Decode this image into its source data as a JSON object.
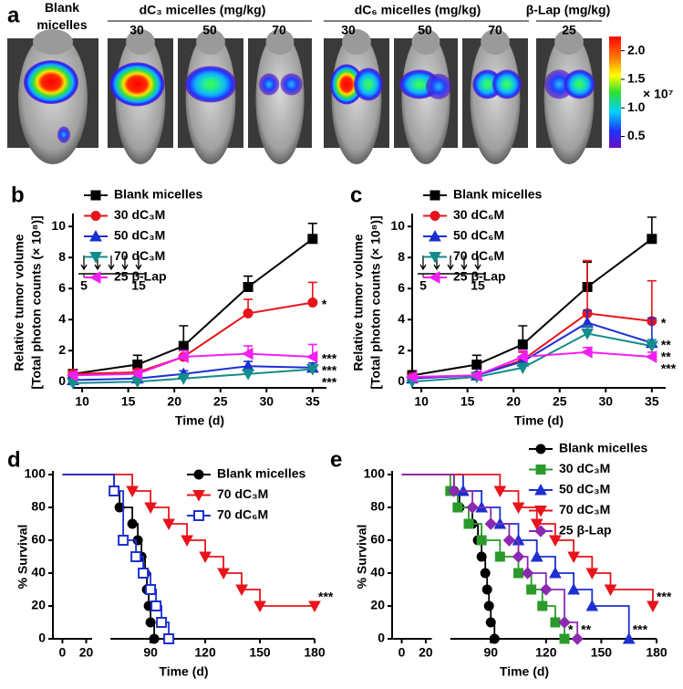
{
  "panel_a": {
    "label": "a",
    "groups": [
      {
        "title": "Blank micelles"
      },
      {
        "title": "dC₃ micelles (mg/kg)",
        "doses": [
          30,
          50,
          70
        ]
      },
      {
        "title": "dC₆ micelles (mg/kg)",
        "doses": [
          30,
          50,
          70
        ]
      },
      {
        "title": "β-Lap (mg/kg)",
        "doses": [
          25
        ]
      }
    ],
    "colorbar": {
      "lim": [
        0.3,
        2.25
      ],
      "ticks": [
        {
          "value": 2.0,
          "label": "2.0"
        },
        1.5,
        {
          "value": 1.0,
          "label": "1.0"
        },
        0.5
      ],
      "multiplier": "× 10⁷"
    }
  },
  "chart_data": [
    {
      "type": "line",
      "panel": "b",
      "xlabel": "Time (d)",
      "ylabel": [
        "Relative tumor volume",
        "[Total photon counts (× 10⁸)]"
      ],
      "x": [
        9,
        16,
        21,
        28,
        35
      ],
      "xlim": [
        9,
        36.5
      ],
      "xticks": [
        10,
        15,
        20,
        25,
        30,
        35
      ],
      "ylim": [
        -0.4,
        10.6
      ],
      "yticks": [
        0,
        2,
        4,
        6,
        8,
        10
      ],
      "legend": "upper left",
      "inset": {
        "xlim": [
          4,
          16.5
        ],
        "xticks": [
          5,
          15
        ],
        "arrows": [
          5,
          7.5,
          10,
          12.5,
          15
        ]
      },
      "series": [
        {
          "name": "Blank micelles",
          "color": "#000000",
          "marker": "square",
          "values": [
            0.5,
            1.1,
            2.3,
            6.1,
            9.2
          ],
          "errors": [
            0.2,
            0.6,
            1.3,
            0.7,
            1.0
          ]
        },
        {
          "name": "30 dC₃M",
          "color": "#e8141b",
          "marker": "circle",
          "values": [
            0.5,
            0.6,
            1.6,
            4.4,
            5.1
          ],
          "errors": [
            0.2,
            0.2,
            0.4,
            0.9,
            1.3
          ],
          "annotation": "*"
        },
        {
          "name": "50 dC₃M",
          "color": "#1c2fd0",
          "marker": "triangle-up",
          "values": [
            0.1,
            0.2,
            0.5,
            1.0,
            0.9
          ],
          "errors": [
            0.1,
            0.1,
            0.2,
            0.3,
            0.3
          ],
          "annotation": "***"
        },
        {
          "name": "70 dC₃M",
          "color": "#138c8c",
          "marker": "triangle-down",
          "values": [
            -0.1,
            0.0,
            0.2,
            0.5,
            0.8
          ],
          "errors": [
            0.1,
            0.1,
            0.1,
            0.2,
            0.2
          ],
          "annotation": "***"
        },
        {
          "name": "25 β-Lap",
          "color": "#f21ff2",
          "marker": "triangle-left",
          "values": [
            0.4,
            0.5,
            1.6,
            1.8,
            1.6
          ],
          "errors": [
            0.2,
            0.2,
            0.4,
            0.5,
            0.8
          ],
          "annotation": "***"
        }
      ]
    },
    {
      "type": "line",
      "panel": "c",
      "xlabel": "Time (d)",
      "ylabel": [
        "Relative tumor volume",
        "[Total photon counts (× 10⁸)]"
      ],
      "x": [
        9,
        16,
        21,
        28,
        35
      ],
      "xlim": [
        9,
        36.5
      ],
      "xticks": [
        10,
        15,
        20,
        25,
        30,
        35
      ],
      "ylim": [
        -0.4,
        10.6
      ],
      "yticks": [
        0,
        2,
        4,
        6,
        8,
        10
      ],
      "legend": "upper left",
      "inset": {
        "xlim": [
          4,
          16.5
        ],
        "xticks": [
          5,
          15
        ],
        "arrows": [
          5,
          7.5,
          10,
          12.5,
          15
        ]
      },
      "series": [
        {
          "name": "Blank micelles",
          "color": "#000000",
          "marker": "square",
          "values": [
            0.4,
            1.1,
            2.4,
            6.1,
            9.2
          ],
          "errors": [
            0.3,
            0.6,
            1.2,
            1.6,
            1.4
          ]
        },
        {
          "name": "30 dC₆M",
          "color": "#e8141b",
          "marker": "circle",
          "values": [
            0.3,
            0.4,
            1.4,
            4.4,
            3.9
          ],
          "errors": [
            0.1,
            0.2,
            0.5,
            3.4,
            2.6
          ],
          "annotation": "*"
        },
        {
          "name": "50 dC₆M",
          "color": "#1c2fd0",
          "marker": "triangle-up",
          "values": [
            0.2,
            0.4,
            1.3,
            3.8,
            2.5
          ],
          "errors": [
            0.1,
            0.1,
            0.3,
            0.8,
            1.6
          ],
          "annotation": "**"
        },
        {
          "name": "70 dC₆M",
          "color": "#138c8c",
          "marker": "triangle-down",
          "values": [
            0.0,
            0.3,
            0.9,
            3.1,
            2.3
          ],
          "errors": [
            0.1,
            0.1,
            0.2,
            0.5,
            0.4
          ],
          "annotation": "**"
        },
        {
          "name": "25 β-Lap",
          "color": "#f21ff2",
          "marker": "triangle-left",
          "values": [
            0.3,
            0.4,
            1.6,
            1.9,
            1.6
          ],
          "errors": [
            0.1,
            0.1,
            0.4,
            0.3,
            0.3
          ],
          "annotation": "***"
        }
      ]
    },
    {
      "type": "step",
      "panel": "d",
      "xlabel": "Time (d)",
      "ylabel": [
        "% Survival"
      ],
      "xlim": [
        -8,
        180
      ],
      "xbreak": [
        25,
        68
      ],
      "xticks": [
        0,
        20,
        90,
        120,
        150,
        180
      ],
      "ylim": [
        0,
        100
      ],
      "yticks": [
        0,
        20,
        40,
        60,
        80,
        100
      ],
      "legend": "upper right",
      "series": [
        {
          "name": "Blank micelles",
          "color": "#000000",
          "marker": "circle",
          "x": [
            0,
            70,
            73,
            80,
            83,
            85,
            87,
            88,
            89,
            90,
            92
          ],
          "values": [
            100,
            90,
            80,
            70,
            60,
            50,
            40,
            30,
            20,
            10,
            0
          ]
        },
        {
          "name": "70 dC₃M",
          "color": "#e8141b",
          "marker": "triangle-down",
          "x": [
            0,
            80,
            90,
            100,
            110,
            120,
            130,
            140,
            150,
            180
          ],
          "values": [
            100,
            90,
            80,
            70,
            60,
            50,
            40,
            30,
            20,
            20
          ],
          "annotation": "***"
        },
        {
          "name": "70 dC₆M",
          "color": "#1c2fd0",
          "marker": "square-open",
          "x": [
            0,
            70,
            75,
            82,
            86,
            90,
            93,
            96,
            100
          ],
          "values": [
            100,
            90,
            60,
            50,
            40,
            30,
            20,
            10,
            0
          ]
        }
      ]
    },
    {
      "type": "step",
      "panel": "e",
      "xlabel": "Time (d)",
      "ylabel": [
        "% Survival"
      ],
      "xlim": [
        -8,
        180
      ],
      "xbreak": [
        25,
        68
      ],
      "xticks": [
        0,
        20,
        90,
        120,
        150,
        180
      ],
      "ylim": [
        0,
        100
      ],
      "yticks": [
        0,
        20,
        40,
        60,
        80,
        100
      ],
      "legend": "upper right",
      "series": [
        {
          "name": "Blank micelles",
          "color": "#000000",
          "marker": "circle",
          "x": [
            0,
            70,
            73,
            80,
            83,
            85,
            87,
            88,
            89,
            90,
            92
          ],
          "values": [
            100,
            90,
            80,
            70,
            60,
            50,
            40,
            30,
            20,
            10,
            0
          ]
        },
        {
          "name": "30 dC₃M",
          "color": "#2a9a2a",
          "marker": "square",
          "x": [
            0,
            68,
            72,
            78,
            85,
            95,
            105,
            112,
            118,
            125,
            130
          ],
          "values": [
            100,
            90,
            80,
            70,
            60,
            50,
            40,
            30,
            20,
            10,
            0
          ],
          "annotation": "*"
        },
        {
          "name": "50 dC₃M",
          "color": "#1c2fd0",
          "marker": "triangle-up",
          "x": [
            0,
            75,
            85,
            95,
            105,
            115,
            125,
            135,
            145,
            165
          ],
          "values": [
            100,
            90,
            80,
            70,
            60,
            50,
            40,
            30,
            20,
            0
          ],
          "annotation": "***"
        },
        {
          "name": "70 dC₃M",
          "color": "#e8141b",
          "marker": "triangle-down",
          "x": [
            0,
            95,
            105,
            115,
            125,
            135,
            145,
            155,
            178
          ],
          "values": [
            100,
            90,
            80,
            70,
            60,
            50,
            40,
            30,
            20
          ],
          "annotation": "***"
        },
        {
          "name": "25 β-Lap",
          "color": "#8a2ab0",
          "marker": "diamond",
          "x": [
            0,
            70,
            80,
            90,
            100,
            105,
            110,
            120,
            130,
            137
          ],
          "values": [
            100,
            90,
            80,
            70,
            60,
            50,
            40,
            30,
            10,
            0
          ],
          "annotation": "**"
        }
      ]
    }
  ]
}
